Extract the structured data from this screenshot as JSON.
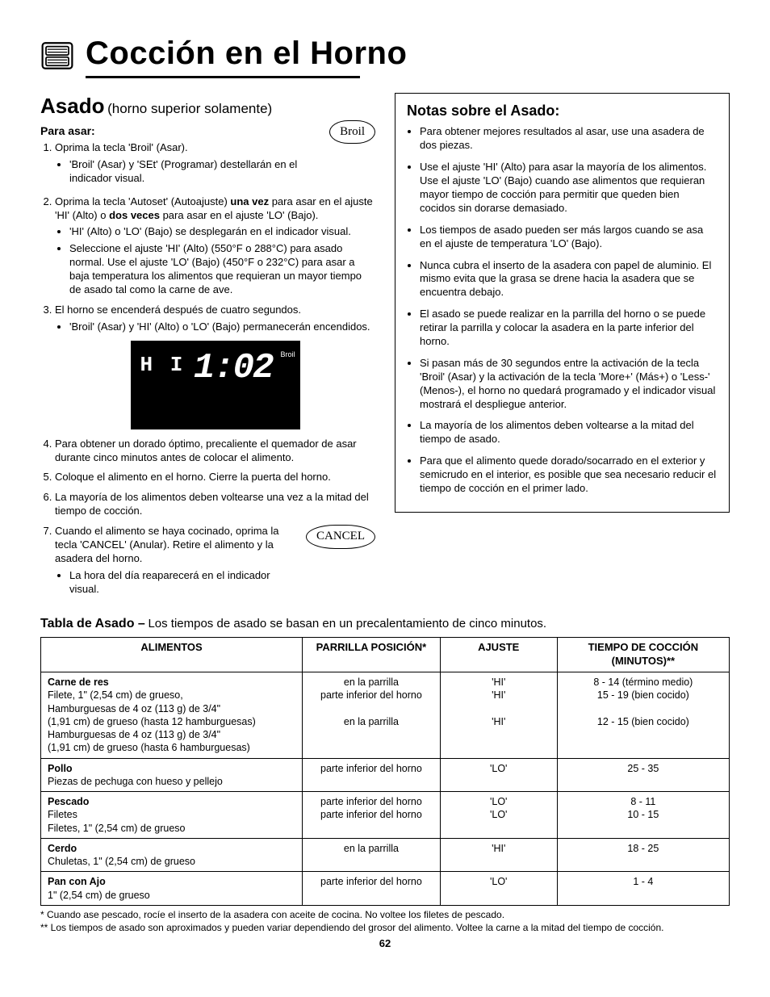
{
  "header": {
    "title": "Cocción en el Horno"
  },
  "section": {
    "title": "Asado",
    "subtitle": "(horno superior solamente)",
    "para_asar": "Para asar:",
    "broil_label": "Broil",
    "cancel_label": "CANCEL",
    "steps": [
      {
        "text": "Oprima la tecla 'Broil' (Asar).",
        "bullets": [
          "'Broil' (Asar) y 'SEt' (Programar) destellarán en el indicador visual."
        ]
      },
      {
        "text_html": "Oprima la tecla 'Autoset' (Autoajuste) <b>una vez</b> para asar en el ajuste 'HI' (Alto) o <b>dos veces</b> para asar en el ajuste 'LO' (Bajo).",
        "bullets": [
          "'HI' (Alto) o 'LO' (Bajo) se desplegarán en el indicador visual.",
          "Seleccione el ajuste 'HI' (Alto) (550°F o 288°C) para asado normal. Use el ajuste 'LO' (Bajo) (450°F o 232°C) para asar a baja temperatura los alimentos que requieran un mayor tiempo de asado tal como la carne de ave."
        ]
      },
      {
        "text": "El horno se encenderá después de cuatro segundos.",
        "bullets": [
          "'Broil' (Asar) y 'HI' (Alto) o 'LO' (Bajo) permanecerán encendidos."
        ]
      },
      {
        "text": "Para obtener un dorado óptimo, precaliente el quemador de asar durante cinco minutos antes de colocar el alimento."
      },
      {
        "text": "Coloque el alimento en el horno.  Cierre la puerta del horno."
      },
      {
        "text": "La mayoría de los alimentos deben voltearse una vez a la mitad del tiempo de cocción."
      },
      {
        "text": "Cuando el alimento se haya cocinado, oprima la tecla 'CANCEL' (Anular). Retire el alimento y la asadera del horno.",
        "bullets": [
          "La hora del día reaparecerá en el indicador visual."
        ]
      }
    ],
    "display": {
      "hi": "H I",
      "time": "1:02",
      "broil": "Broil"
    }
  },
  "notes": {
    "title": "Notas sobre el Asado:",
    "items": [
      "Para obtener mejores resultados al asar, use una asadera de dos piezas.",
      "Use el ajuste 'HI' (Alto) para asar la mayoría de los alimentos. Use el ajuste 'LO' (Bajo) cuando ase alimentos que requieran mayor tiempo de cocción para permitir que queden bien cocidos sin dorarse demasiado.",
      "Los tiempos de asado pueden ser más largos cuando se asa en el ajuste de temperatura 'LO' (Bajo).",
      "Nunca cubra el inserto de la asadera con papel de aluminio. El mismo evita que la grasa se drene hacia la asadera que se encuentra debajo.",
      "El asado se puede realizar en la parrilla del horno o se puede retirar la parrilla y colocar la asadera en la parte inferior del horno.",
      "Si pasan más de 30 segundos entre la activación de la tecla 'Broil' (Asar) y la activación de la tecla 'More+' (Más+) o 'Less-' (Menos-), el horno no quedará programado y el indicador visual mostrará el despliegue anterior.",
      "La mayoría de los alimentos deben voltearse a la mitad del tiempo de asado.",
      "Para que el alimento quede dorado/socarrado en el exterior y semicrudo en el interior, es posible que sea necesario reducir el tiempo de cocción en el primer lado."
    ]
  },
  "table": {
    "title": "Tabla de Asado –",
    "subtitle": "Los tiempos de asado se basan en un precalentamiento de cinco minutos.",
    "headers": [
      "ALIMENTOS",
      "PARRILLA POSICIÓN*",
      "AJUSTE",
      "TIEMPO DE COCCIÓN (MINUTOS)**"
    ],
    "rows": [
      {
        "cat": "Carne de res",
        "lines": [
          "Filete, 1\" (2,54 cm) de grueso,",
          "Hamburguesas de 4 oz (113 g) de 3/4\"",
          "(1,91 cm) de grueso (hasta 12 hamburguesas)",
          "Hamburguesas de 4 oz (113 g) de 3/4\"",
          "(1,91 cm) de grueso (hasta 6 hamburguesas)"
        ],
        "pos": [
          "en la parrilla",
          "parte inferior del horno",
          "",
          "en la parrilla"
        ],
        "set": [
          "'HI'",
          "'HI'",
          "",
          "'HI'"
        ],
        "time": [
          "8 - 14 (término medio)",
          "15 - 19 (bien cocido)",
          "",
          "12 - 15 (bien cocido)"
        ]
      },
      {
        "cat": "Pollo",
        "lines": [
          "Piezas de pechuga con hueso y pellejo"
        ],
        "pos": [
          "parte inferior del horno"
        ],
        "set": [
          "'LO'"
        ],
        "time": [
          "25 - 35"
        ]
      },
      {
        "cat": "Pescado",
        "lines": [
          "Filetes",
          "Filetes, 1\" (2,54 cm) de grueso"
        ],
        "pos": [
          "parte inferior del horno",
          "parte inferior del horno"
        ],
        "set": [
          "'LO'",
          "'LO'"
        ],
        "time": [
          "8 - 11",
          "10 - 15"
        ]
      },
      {
        "cat": "Cerdo",
        "lines": [
          "Chuletas, 1\" (2,54 cm) de grueso"
        ],
        "pos": [
          "en la parrilla"
        ],
        "set": [
          "'HI'"
        ],
        "time": [
          "18 - 25"
        ]
      },
      {
        "cat": "Pan con Ajo",
        "lines": [
          "1\" (2,54 cm) de grueso"
        ],
        "pos": [
          "parte inferior del horno"
        ],
        "set": [
          "'LO'"
        ],
        "time": [
          "1 - 4"
        ]
      }
    ],
    "footnotes": [
      "*   Cuando ase pescado, rocíe el inserto de la asadera con aceite de cocina. No voltee los filetes de pescado.",
      "** Los tiempos de asado son aproximados y pueden variar dependiendo del grosor del alimento. Voltee la carne a la mitad del tiempo de cocción."
    ]
  },
  "page_number": "62"
}
